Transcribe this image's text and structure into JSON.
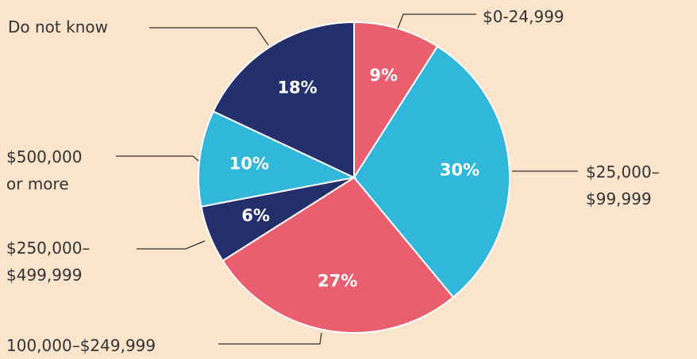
{
  "chart_data": {
    "type": "pie",
    "categories": [
      "$0-24,999",
      "$25,000–$99,999",
      "100,000–$249,999",
      "$250,000–$499,999",
      "$500,000 or more",
      "Do not know"
    ],
    "values": [
      9,
      30,
      27,
      6,
      10,
      18
    ],
    "value_labels": [
      "9%",
      "30%",
      "27%",
      "6%",
      "10%",
      "18%"
    ],
    "colors": [
      "#e95f6f",
      "#31b7d9",
      "#e95f6f",
      "#23306b",
      "#31b7d9",
      "#23306b"
    ]
  }
}
